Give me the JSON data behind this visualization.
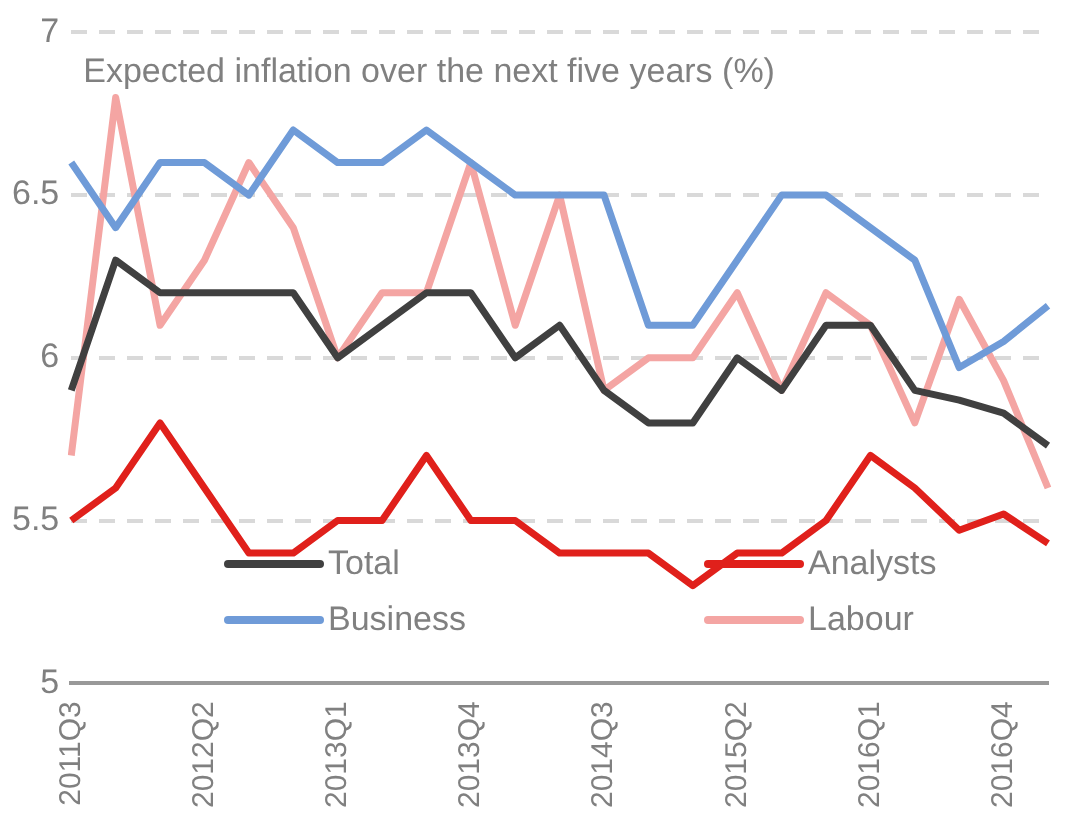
{
  "chart_data": {
    "type": "line",
    "title": "Expected inflation over the next five years (%)",
    "categories": [
      "2011Q3",
      null,
      null,
      "2012Q2",
      null,
      null,
      "2013Q1",
      null,
      null,
      "2013Q4",
      null,
      null,
      "2014Q3",
      null,
      null,
      "2015Q2",
      null,
      null,
      "2016Q1",
      null,
      null,
      "2016Q4",
      null
    ],
    "series": [
      {
        "name": "Total",
        "color": "#404040",
        "values": [
          5.9,
          6.3,
          6.2,
          6.2,
          6.2,
          6.2,
          6.0,
          6.1,
          6.2,
          6.2,
          6.0,
          6.1,
          5.9,
          5.8,
          5.8,
          6.0,
          5.9,
          6.1,
          6.1,
          5.9,
          5.87,
          5.83,
          5.73
        ]
      },
      {
        "name": "Analysts",
        "color": "#e0201b",
        "values": [
          5.5,
          5.6,
          5.8,
          5.6,
          5.4,
          5.4,
          5.5,
          5.5,
          5.7,
          5.5,
          5.5,
          5.4,
          5.4,
          5.4,
          5.3,
          5.4,
          5.4,
          5.5,
          5.7,
          5.6,
          5.47,
          5.52,
          5.43
        ]
      },
      {
        "name": "Business",
        "color": "#6f9bd8",
        "values": [
          6.6,
          6.4,
          6.6,
          6.6,
          6.5,
          6.7,
          6.6,
          6.6,
          6.7,
          6.6,
          6.5,
          6.5,
          6.5,
          6.1,
          6.1,
          6.3,
          6.5,
          6.5,
          6.4,
          6.3,
          5.97,
          6.05,
          6.16
        ]
      },
      {
        "name": "Labour",
        "color": "#f4a5a3",
        "values": [
          5.7,
          6.8,
          6.1,
          6.3,
          6.6,
          6.4,
          6.0,
          6.2,
          6.2,
          6.6,
          6.1,
          6.5,
          5.9,
          6.0,
          6.0,
          6.2,
          5.9,
          6.2,
          6.1,
          5.8,
          6.18,
          5.93,
          5.6
        ]
      }
    ],
    "ylim": [
      5,
      7
    ],
    "yticks": [
      5,
      5.5,
      6,
      6.5,
      7
    ],
    "grid": "y",
    "legend": "bottom",
    "line_style": "solid",
    "marker": "none"
  }
}
